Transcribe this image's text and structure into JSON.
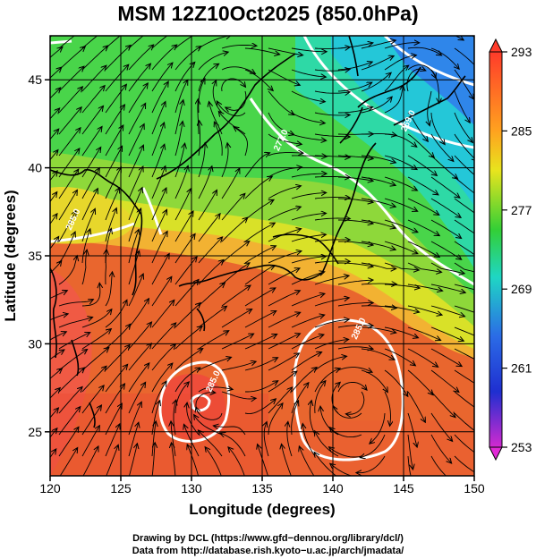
{
  "title": "MSM 12Z10Oct2025 (850.0hPa)",
  "map": {
    "lon_range": [
      120,
      150
    ],
    "lat_range": [
      22.5,
      47.5
    ],
    "x_ticks": [
      "120",
      "125",
      "130",
      "135",
      "140",
      "145",
      "150"
    ],
    "y_ticks": [
      "25",
      "30",
      "35",
      "40",
      "45"
    ],
    "xlabel": "Longitude (degrees)",
    "ylabel": "Latitude  (degrees)",
    "grid": true,
    "field": "temperature",
    "overlay": "streamlines",
    "contour_labels": [
      {
        "text": "285.0",
        "lon": 121.8,
        "lat": 37.0
      },
      {
        "text": "285.0",
        "lon": 131.7,
        "lat": 27.8
      },
      {
        "text": "285.0",
        "lon": 142.0,
        "lat": 30.8
      },
      {
        "text": "277.0",
        "lon": 136.5,
        "lat": 41.5
      },
      {
        "text": "269.0",
        "lon": 145.5,
        "lat": 42.6
      }
    ],
    "colors": {
      "warm": "#e8443a",
      "mid": "#49d54a",
      "cool": "#2f76e8",
      "contour": "#ffffff"
    }
  },
  "colorbar": {
    "labels": [
      "293",
      "285",
      "277",
      "269",
      "261",
      "253"
    ],
    "values": [
      293,
      285,
      277,
      269,
      261,
      253
    ],
    "colors": [
      "#ff3b2a",
      "#ff8b1f",
      "#e8e41e",
      "#33cf36",
      "#1fd6c4",
      "#2b6be6",
      "#1f2fd0",
      "#c82ad6"
    ]
  },
  "credits": {
    "line1": "Drawing by DCL (https://www.gfd−dennou.org/library/dcl/)",
    "line2": "Data from http://database.rish.kyoto−u.ac.jp/arch/jmadata/"
  }
}
